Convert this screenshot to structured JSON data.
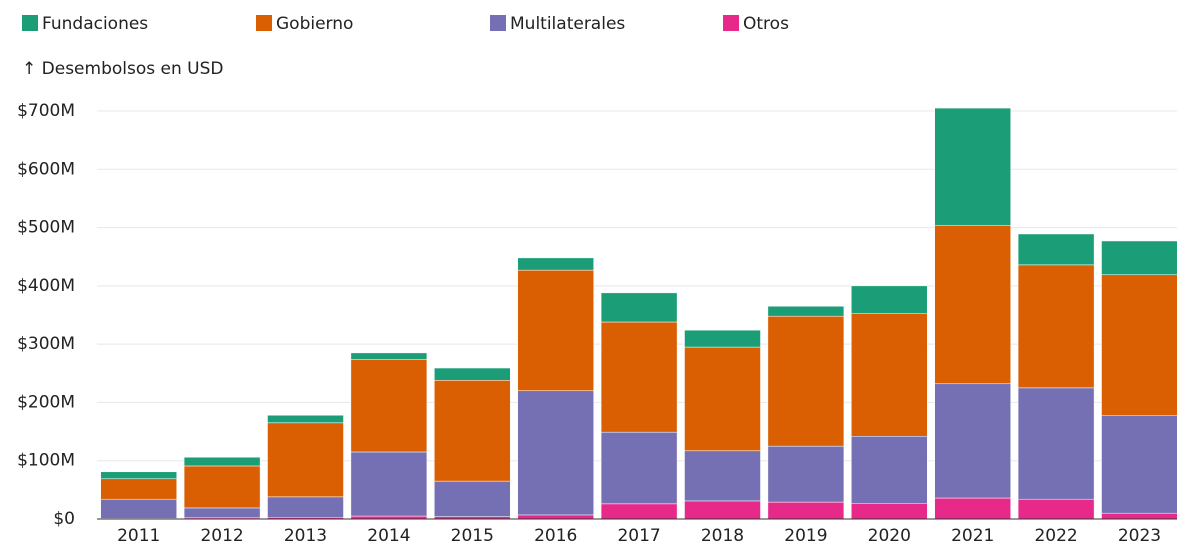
{
  "chart_data": {
    "type": "stacked_bar",
    "subtitle": "↑ Desembolsos en USD",
    "categories": [
      "2011",
      "2012",
      "2013",
      "2014",
      "2015",
      "2016",
      "2017",
      "2018",
      "2019",
      "2020",
      "2021",
      "2022",
      "2023"
    ],
    "series": [
      {
        "name": "Fundaciones",
        "color": "#1b9e77",
        "values": [
          12000000,
          15000000,
          13000000,
          11000000,
          21000000,
          21000000,
          50000000,
          29000000,
          17000000,
          47000000,
          201000000,
          53000000,
          58000000
        ]
      },
      {
        "name": "Gobierno",
        "color": "#d95f02",
        "values": [
          35000000,
          72000000,
          127000000,
          159000000,
          173000000,
          207000000,
          189000000,
          178000000,
          223000000,
          211000000,
          272000000,
          211000000,
          241000000
        ]
      },
      {
        "name": "Multilaterales",
        "color": "#7570b3",
        "values": [
          33000000,
          17000000,
          35000000,
          110000000,
          61000000,
          213000000,
          123000000,
          86000000,
          96000000,
          115000000,
          196000000,
          191000000,
          168000000
        ]
      },
      {
        "name": "Otros",
        "color": "#e7298a",
        "values": [
          1000000,
          2000000,
          3000000,
          5000000,
          4000000,
          7000000,
          26000000,
          31000000,
          29000000,
          27000000,
          36000000,
          34000000,
          10000000
        ]
      }
    ],
    "ylim": [
      0,
      700000000
    ],
    "yticks": [
      {
        "value": 0,
        "label": "$0"
      },
      {
        "value": 100000000,
        "label": "$100M"
      },
      {
        "value": 200000000,
        "label": "$200M"
      },
      {
        "value": 300000000,
        "label": "$300M"
      },
      {
        "value": 400000000,
        "label": "$400M"
      },
      {
        "value": 500000000,
        "label": "$500M"
      },
      {
        "value": 600000000,
        "label": "$600M"
      },
      {
        "value": 700000000,
        "label": "$700M"
      }
    ],
    "grid": true
  }
}
